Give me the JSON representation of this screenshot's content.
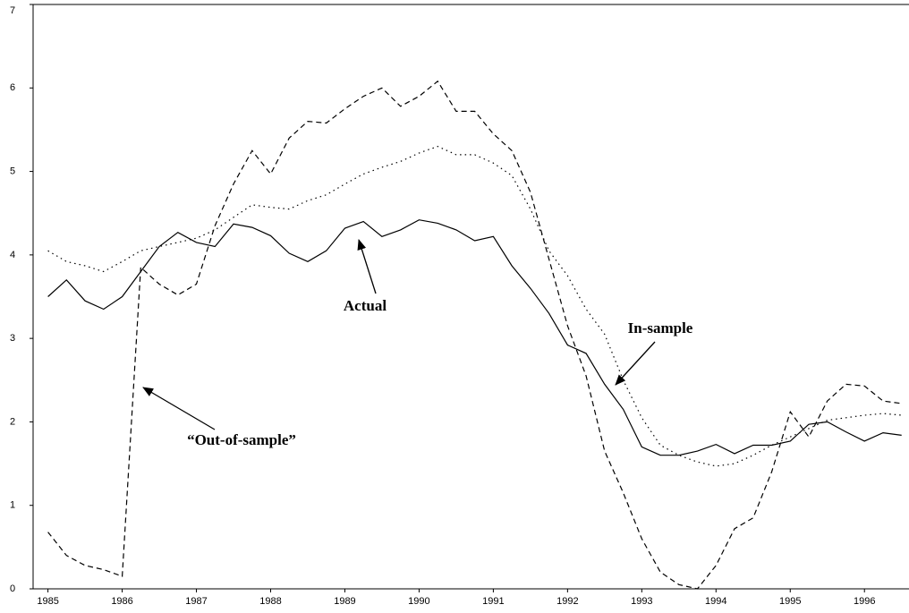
{
  "chart_data": {
    "type": "line",
    "x": [
      1985,
      1985.25,
      1985.5,
      1985.75,
      1986,
      1986.25,
      1986.5,
      1986.75,
      1987,
      1987.25,
      1987.5,
      1987.75,
      1988,
      1988.25,
      1988.5,
      1988.75,
      1989,
      1989.25,
      1989.5,
      1989.75,
      1990,
      1990.25,
      1990.5,
      1990.75,
      1991,
      1991.25,
      1991.5,
      1991.75,
      1992,
      1992.25,
      1992.5,
      1992.75,
      1993,
      1993.25,
      1993.5,
      1993.75,
      1994,
      1994.25,
      1994.5,
      1994.75,
      1995,
      1995.25,
      1995.5,
      1995.75,
      1996,
      1996.25,
      1996.5
    ],
    "series": [
      {
        "name": "Actual",
        "color": "#000000",
        "style": "solid",
        "values": [
          3.5,
          3.7,
          3.45,
          3.35,
          3.5,
          3.8,
          4.1,
          4.27,
          4.15,
          4.1,
          4.37,
          4.33,
          4.23,
          4.02,
          3.92,
          4.05,
          4.32,
          4.4,
          4.22,
          4.3,
          4.42,
          4.38,
          4.3,
          4.17,
          4.22,
          3.87,
          3.6,
          3.3,
          2.92,
          2.82,
          2.45,
          2.15,
          1.7,
          1.6,
          1.6,
          1.65,
          1.73,
          1.62,
          1.72,
          1.72,
          1.77,
          1.97,
          2.0,
          1.88,
          1.77,
          1.87,
          1.84
        ]
      },
      {
        "name": "In-sample",
        "color": "#000000",
        "style": "dotted",
        "values": [
          4.05,
          3.92,
          3.87,
          3.8,
          3.92,
          4.05,
          4.1,
          4.15,
          4.2,
          4.3,
          4.45,
          4.6,
          4.57,
          4.55,
          4.65,
          4.72,
          4.85,
          4.97,
          5.05,
          5.12,
          5.22,
          5.3,
          5.2,
          5.2,
          5.1,
          4.95,
          4.55,
          4.05,
          3.75,
          3.35,
          3.05,
          2.5,
          2.05,
          1.72,
          1.6,
          1.52,
          1.47,
          1.5,
          1.6,
          1.72,
          1.82,
          1.92,
          2.02,
          2.05,
          2.08,
          2.1,
          2.08
        ]
      },
      {
        "name": "“Out-of-sample”",
        "color": "#000000",
        "style": "dashed",
        "values": [
          0.68,
          0.4,
          0.28,
          0.23,
          0.15,
          3.85,
          3.65,
          3.52,
          3.65,
          4.35,
          4.85,
          5.25,
          4.97,
          5.4,
          5.6,
          5.58,
          5.75,
          5.9,
          6.0,
          5.78,
          5.9,
          6.08,
          5.72,
          5.72,
          5.45,
          5.25,
          4.75,
          3.95,
          3.15,
          2.55,
          1.65,
          1.15,
          0.6,
          0.2,
          0.05,
          0.0,
          0.28,
          0.72,
          0.85,
          1.4,
          2.12,
          1.82,
          2.25,
          2.45,
          2.43,
          2.25,
          2.22
        ]
      }
    ],
    "xlim": [
      1984.8,
      1996.6
    ],
    "xticks": [
      1985,
      1986,
      1987,
      1988,
      1989,
      1990,
      1991,
      1992,
      1993,
      1994,
      1995,
      1996
    ],
    "ylim": [
      0,
      7
    ],
    "yticks": [
      0,
      1,
      2,
      3,
      4,
      5,
      6,
      7
    ],
    "grid": false
  }
}
